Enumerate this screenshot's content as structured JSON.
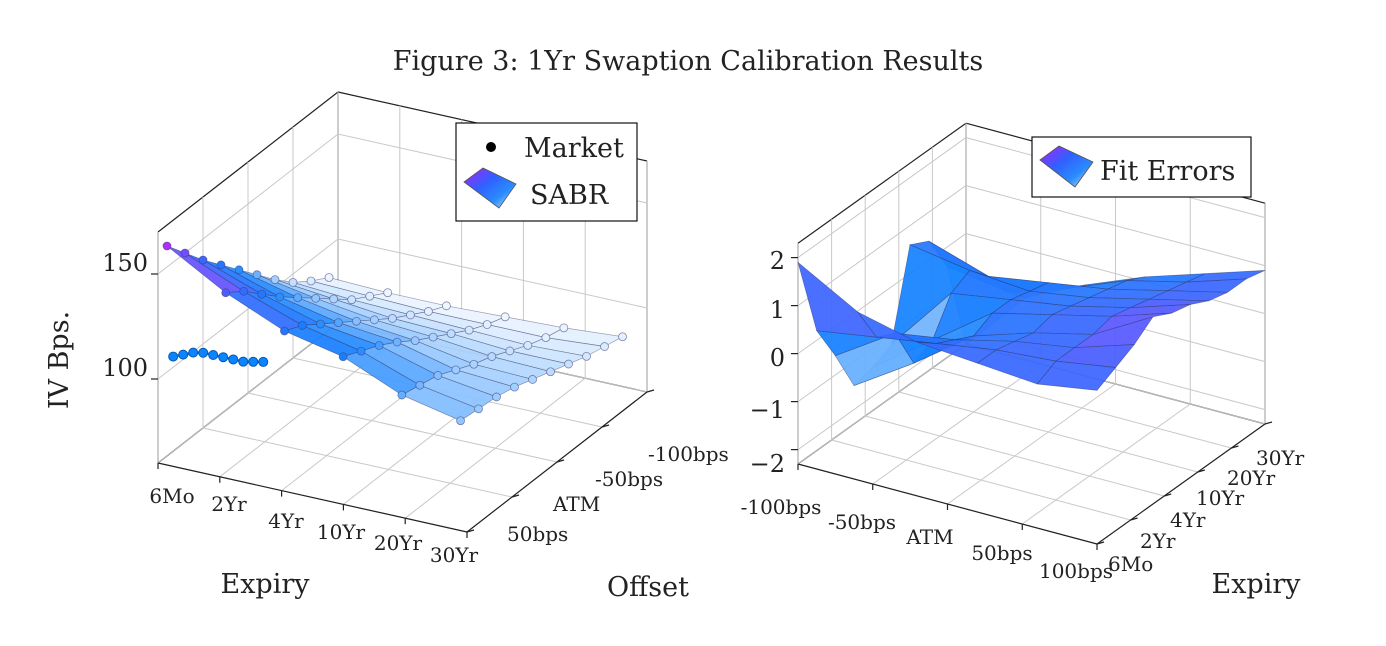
{
  "figure": {
    "title": "Figure 3: 1Yr Swaption Calibration Results"
  },
  "chart_data": [
    {
      "type": "surface",
      "ylabel": "IV Bps.",
      "xlabel": "Expiry",
      "zlabel": "Offset",
      "x_ticks": [
        "6Mo",
        "2Yr",
        "4Yr",
        "10Yr",
        "20Yr",
        "30Yr"
      ],
      "offset_ticks": [
        "-100bps",
        "-50bps",
        "ATM",
        "50bps"
      ],
      "y_ticks": [
        "100",
        "150"
      ],
      "ylim": [
        60,
        170
      ],
      "legend": {
        "position": "top-right",
        "entries": [
          "Market",
          "SABR"
        ]
      },
      "series": [
        {
          "name": "SABR",
          "values": [
            [
              108,
              114,
              126,
              132,
              144,
              160
            ],
            [
              107,
              112,
              122,
              128,
              138,
              150
            ],
            [
              106,
              110,
              118,
              122,
              130,
              140
            ],
            [
              104,
              106,
              113,
              116,
              122,
              131
            ],
            [
              101,
              102,
              107,
              110,
              115,
              122
            ],
            [
              98,
              99,
              102,
              104,
              108,
              113
            ],
            [
              95,
              95,
              97,
              98,
              101,
              104
            ],
            [
              92,
              91,
              92,
              93,
              94,
              96
            ],
            [
              90,
              88,
              88,
              88,
              89,
              90
            ],
            [
              88,
              86,
              85,
              84,
              84,
              85
            ]
          ]
        }
      ]
    },
    {
      "type": "surface",
      "xlabel": "Expiry",
      "x_ticks": [
        "6Mo",
        "2Yr",
        "4Yr",
        "10Yr",
        "20Yr",
        "30Yr"
      ],
      "offset_ticks": [
        "-100bps",
        "-50bps",
        "ATM",
        "50bps",
        "100bps"
      ],
      "z_ticks": [
        "−2",
        "−1",
        "0",
        "1",
        "2"
      ],
      "zlim": [
        -2.3,
        2.3
      ],
      "legend": {
        "position": "top-right",
        "entries": [
          "Fit Errors"
        ]
      },
      "series": [
        {
          "name": "Fit Errors",
          "values": [
            [
              1.9,
              1.2,
              0.9,
              0.8,
              0.7,
              0.9
            ],
            [
              0.2,
              0.4,
              0.6,
              0.8,
              0.9,
              1.1
            ],
            [
              -0.6,
              0.2,
              0.4,
              0.7,
              0.9,
              1.3
            ],
            [
              -1.5,
              -0.7,
              0.2,
              0.6,
              0.9,
              1.6
            ],
            [
              -1.4,
              -0.5,
              0.4,
              0.7,
              1.0,
              1.4
            ],
            [
              -1.2,
              0.2,
              0.4,
              0.6,
              0.9,
              1.3
            ],
            [
              0.6,
              0.4,
              0.3,
              0.5,
              0.8,
              1.1
            ],
            [
              0.4,
              0.0,
              0.2,
              0.4,
              0.7,
              1.0
            ],
            [
              -0.4,
              -0.6,
              -0.2,
              0.3,
              0.6,
              1.0
            ],
            [
              -2.3,
              -1.0,
              -0.4,
              0.1,
              0.5,
              0.9
            ]
          ]
        }
      ]
    }
  ]
}
